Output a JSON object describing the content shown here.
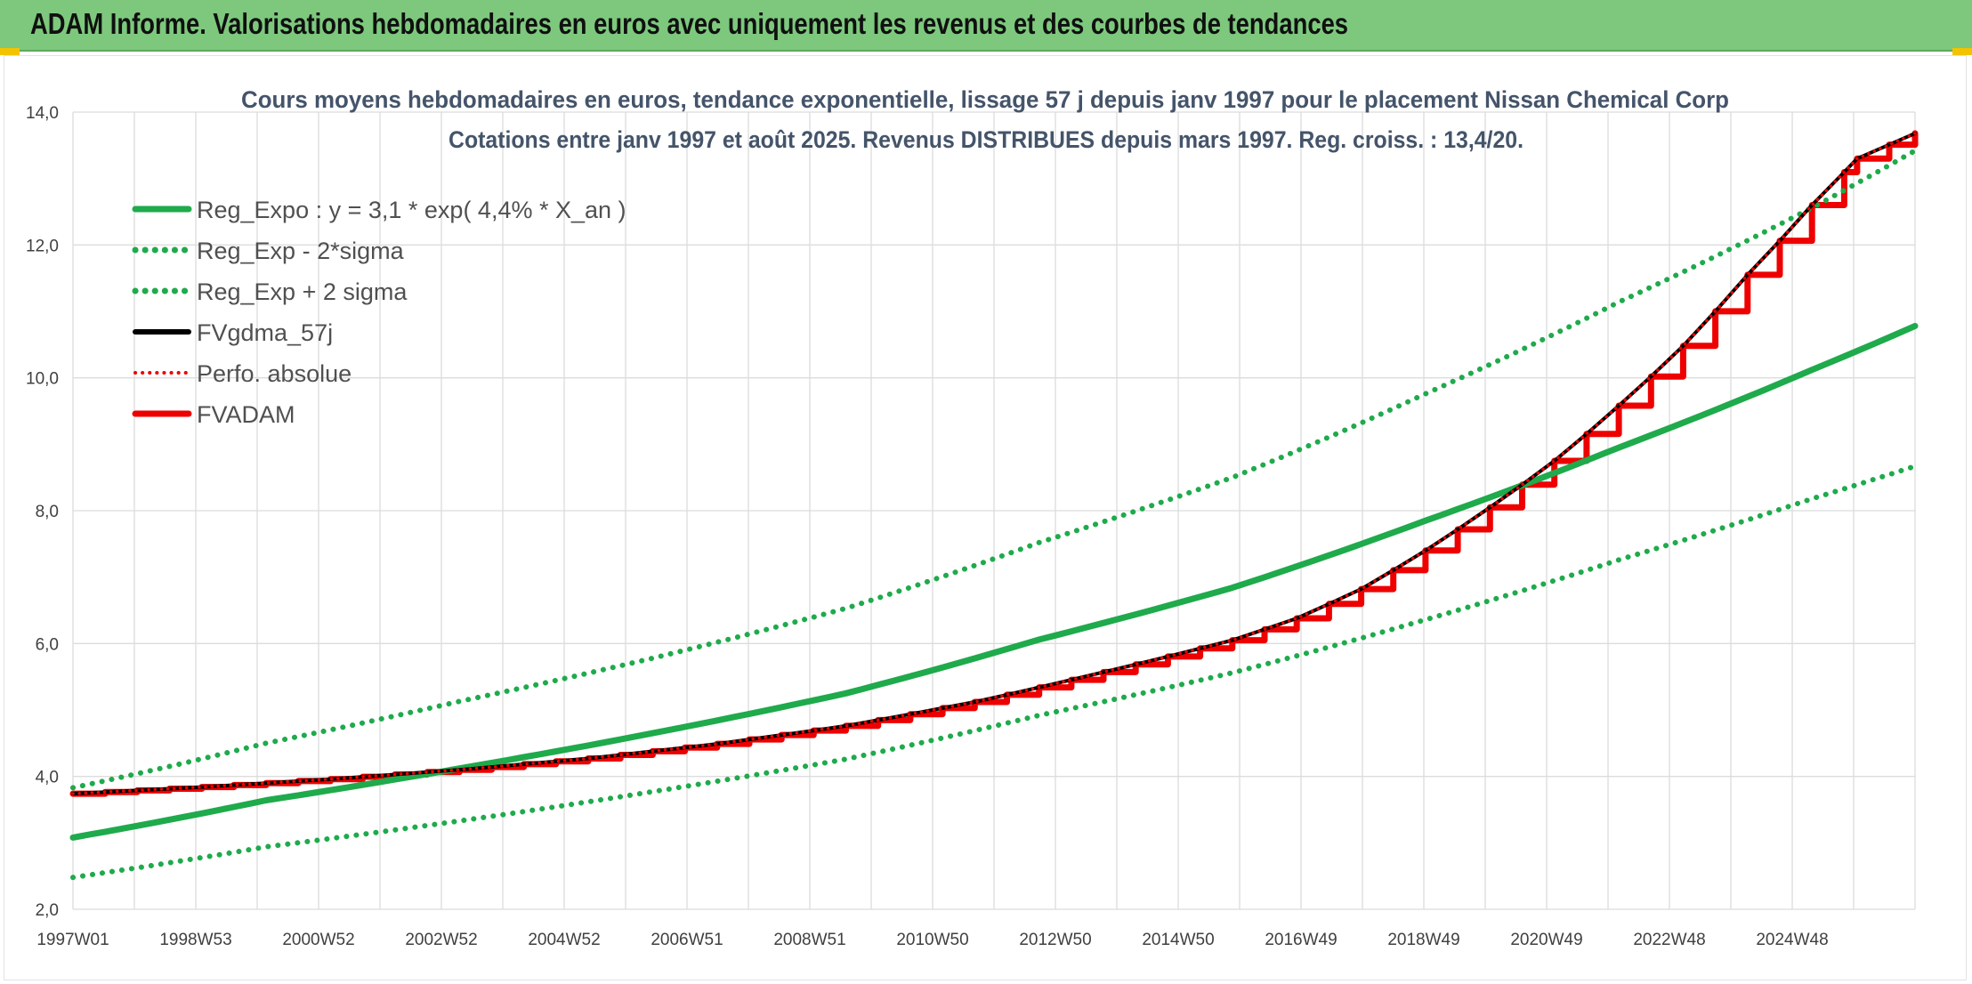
{
  "banner": {
    "title": "ADAM Informe. Valorisations hebdomadaires en euros avec uniquement les revenus et des courbes de tendances"
  },
  "colors": {
    "banner": "#7dc87d",
    "trend": "#1faa4c",
    "fvgdma": "#000000",
    "fvadam": "#ee0000",
    "perfo": "#ee0000",
    "title": "#44546a"
  },
  "chart_data": {
    "type": "line",
    "title": "Cours moyens hebdomadaires en euros, tendance exponentielle, lissage 57 j depuis janv 1997 pour le placement Nissan Chemical Corp",
    "subtitle": "Cotations entre janv 1997 et août 2025. Revenus DISTRIBUES depuis mars 1997. Reg. croiss. : 13,4/20.",
    "xlabel": "",
    "ylabel": "",
    "x_start": 1997.0,
    "x_end": 2025.6,
    "ylim": [
      2.0,
      14.0
    ],
    "y_ticks": [
      "2,0",
      "4,0",
      "6,0",
      "8,0",
      "10,0",
      "12,0",
      "14,0"
    ],
    "x_ticks": [
      "1997W01",
      "1998W53",
      "2000W52",
      "2002W52",
      "2004W52",
      "2006W51",
      "2008W51",
      "2010W50",
      "2012W50",
      "2014W50",
      "2016W49",
      "2018W49",
      "2020W49",
      "2022W48",
      "2024W48"
    ],
    "grid": true,
    "legend_position": "top-left",
    "series": [
      {
        "name": "Reg_Expo : y = 3,1 * exp( 4,4% *  X_an )",
        "style": "solid-green",
        "x": [
          1997,
          2000,
          2003,
          2006,
          2009,
          2012,
          2015,
          2018,
          2021,
          2024,
          2025.6
        ],
        "values": [
          3.08,
          3.64,
          4.12,
          4.65,
          5.25,
          6.06,
          6.84,
          7.85,
          8.95,
          10.12,
          10.78
        ]
      },
      {
        "name": "Reg_Exp - 2*sigma",
        "style": "dotted-green",
        "x": [
          1997,
          2000,
          2003,
          2006,
          2009,
          2012,
          2015,
          2018,
          2021,
          2024,
          2025.6
        ],
        "values": [
          2.48,
          2.94,
          3.33,
          3.77,
          4.26,
          4.92,
          5.56,
          6.36,
          7.26,
          8.18,
          8.67
        ]
      },
      {
        "name": "Reg_Exp + 2 sigma",
        "style": "dotted-green",
        "x": [
          1997,
          2000,
          2003,
          2006,
          2009,
          2012,
          2015,
          2018,
          2021,
          2024,
          2025.6
        ],
        "values": [
          3.83,
          4.5,
          5.13,
          5.78,
          6.53,
          7.52,
          8.5,
          9.76,
          11.14,
          12.56,
          13.42
        ]
      },
      {
        "name": "FVgdma_57j",
        "style": "solid-black",
        "x": [
          1997,
          1999,
          2001,
          2003,
          2005,
          2007,
          2009,
          2011,
          2013,
          2015,
          2016,
          2017,
          2018,
          2019,
          2020,
          2021,
          2022,
          2023,
          2024,
          2024.7,
          2025.6
        ],
        "values": [
          3.74,
          3.84,
          3.96,
          4.1,
          4.27,
          4.49,
          4.76,
          5.12,
          5.57,
          6.05,
          6.38,
          6.82,
          7.4,
          8.05,
          8.75,
          9.58,
          10.48,
          11.55,
          12.6,
          13.3,
          13.68
        ]
      },
      {
        "name": "Perfo. absolue",
        "style": "dotted-red",
        "x": [
          1997,
          1999,
          2001,
          2003,
          2005,
          2007,
          2009,
          2011,
          2013,
          2015,
          2016,
          2017,
          2018,
          2019,
          2020,
          2021,
          2022,
          2023,
          2024,
          2024.7,
          2025.6
        ],
        "values": [
          3.74,
          3.84,
          3.96,
          4.1,
          4.27,
          4.49,
          4.76,
          5.12,
          5.57,
          6.05,
          6.38,
          6.82,
          7.4,
          8.05,
          8.75,
          9.58,
          10.48,
          11.55,
          12.6,
          13.3,
          13.68
        ]
      },
      {
        "name": "FVADAM",
        "style": "step-red",
        "x": [
          1997,
          1999,
          2001,
          2003,
          2005,
          2007,
          2009,
          2011,
          2013,
          2015,
          2016,
          2017,
          2018,
          2019,
          2020,
          2021,
          2022,
          2023,
          2024,
          2024.7,
          2025.6
        ],
        "values": [
          3.74,
          3.84,
          3.96,
          4.1,
          4.27,
          4.49,
          4.76,
          5.12,
          5.57,
          6.05,
          6.38,
          6.82,
          7.4,
          8.05,
          8.75,
          9.58,
          10.48,
          11.55,
          12.6,
          13.3,
          13.68
        ]
      }
    ]
  }
}
